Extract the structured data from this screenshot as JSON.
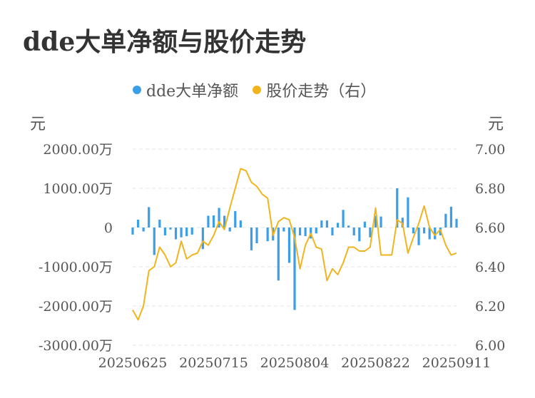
{
  "title": "dde大单净额与股价走势",
  "legend": {
    "dde": {
      "label": "dde大单净额",
      "color": "#3a9ee8"
    },
    "price": {
      "label": "股价走势（右）",
      "color": "#f2b41d"
    }
  },
  "units": {
    "left": "元",
    "right": "元"
  },
  "chart_data": {
    "type": "bar+line",
    "title": "dde大单净额与股价走势",
    "x_ticks": [
      "20250625",
      "20250715",
      "20250804",
      "20250822",
      "20250911"
    ],
    "x_tick_index": [
      0,
      15,
      30,
      45,
      60
    ],
    "left_axis": {
      "ticks": [
        "2000.00万",
        "1000.00万",
        "0",
        "-1000.00万",
        "-2000.00万",
        "-3000.00万"
      ],
      "values": [
        2000,
        1000,
        0,
        -1000,
        -2000,
        -3000
      ],
      "ylim": [
        -3000,
        2000
      ],
      "unit": "万元"
    },
    "right_axis": {
      "ticks": [
        "7.00",
        "6.80",
        "6.60",
        "6.40",
        "6.20",
        "6.00"
      ],
      "values": [
        7.0,
        6.8,
        6.6,
        6.4,
        6.2,
        6.0
      ],
      "ylim": [
        6.0,
        7.0
      ]
    },
    "series": [
      {
        "name": "dde大单净额",
        "type": "bar",
        "values": [
          -180,
          200,
          -100,
          520,
          -700,
          200,
          -200,
          -50,
          -300,
          -250,
          -220,
          -180,
          0,
          -550,
          300,
          310,
          500,
          300,
          -100,
          420,
          180,
          0,
          -580,
          -400,
          0,
          -350,
          -330,
          -1350,
          -100,
          -900,
          -2100,
          -200,
          -220,
          -280,
          -150,
          180,
          180,
          -200,
          120,
          450,
          50,
          -200,
          -350,
          150,
          -250,
          300,
          280,
          0,
          0,
          1000,
          250,
          770,
          -150,
          -450,
          -150,
          -300,
          -300,
          -200,
          350,
          530,
          220
        ]
      },
      {
        "name": "股价走势（右）",
        "type": "line",
        "values": [
          6.18,
          6.13,
          6.2,
          6.38,
          6.4,
          6.5,
          6.46,
          6.4,
          6.42,
          6.53,
          6.44,
          6.46,
          6.47,
          6.53,
          6.51,
          6.56,
          6.63,
          6.59,
          6.7,
          6.8,
          6.9,
          6.89,
          6.83,
          6.81,
          6.77,
          6.75,
          6.56,
          6.63,
          6.65,
          6.64,
          6.55,
          6.39,
          6.51,
          6.57,
          6.5,
          6.49,
          6.33,
          6.39,
          6.36,
          6.42,
          6.5,
          6.5,
          6.48,
          6.48,
          6.5,
          6.7,
          6.46,
          6.46,
          6.46,
          6.64,
          6.62,
          6.47,
          6.55,
          6.62,
          6.71,
          6.6,
          6.56,
          6.59,
          6.51,
          6.46,
          6.47
        ]
      }
    ],
    "grid": true
  }
}
